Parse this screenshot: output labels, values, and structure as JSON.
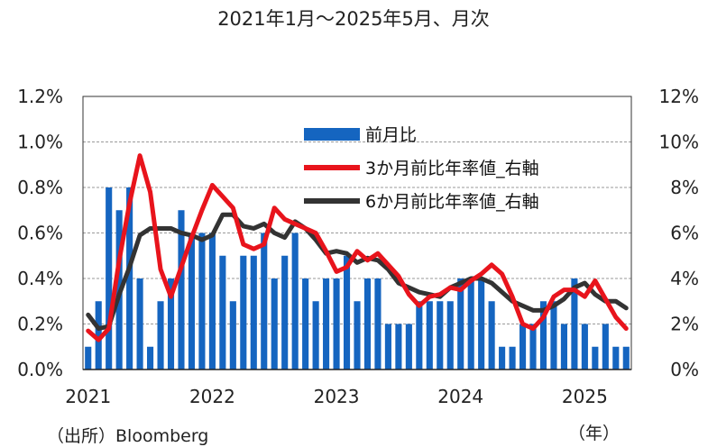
{
  "chart_data": {
    "type": "bar+line",
    "title": "2021年1月～2025年5月、月次",
    "source": "（出所）Bloomberg",
    "x_unit": "（年）",
    "x_tick_labels": [
      "2021",
      "2022",
      "2023",
      "2024",
      "2025"
    ],
    "y_left": {
      "ylim": [
        0,
        1.2
      ],
      "ticks": [
        0,
        0.2,
        0.4,
        0.6,
        0.8,
        1.0,
        1.2
      ],
      "tick_labels": [
        "0.0%",
        "0.2%",
        "0.4%",
        "0.6%",
        "0.8%",
        "1.0%",
        "1.2%"
      ]
    },
    "y_right": {
      "ylim": [
        0,
        12
      ],
      "ticks": [
        0,
        2,
        4,
        6,
        8,
        10,
        12
      ],
      "tick_labels": [
        "0%",
        "2%",
        "4%",
        "6%",
        "8%",
        "10%",
        "12%"
      ]
    },
    "grid": true,
    "legend_position": "top-center",
    "x": [
      "2021-01",
      "2021-02",
      "2021-03",
      "2021-04",
      "2021-05",
      "2021-06",
      "2021-07",
      "2021-08",
      "2021-09",
      "2021-10",
      "2021-11",
      "2021-12",
      "2022-01",
      "2022-02",
      "2022-03",
      "2022-04",
      "2022-05",
      "2022-06",
      "2022-07",
      "2022-08",
      "2022-09",
      "2022-10",
      "2022-11",
      "2022-12",
      "2023-01",
      "2023-02",
      "2023-03",
      "2023-04",
      "2023-05",
      "2023-06",
      "2023-07",
      "2023-08",
      "2023-09",
      "2023-10",
      "2023-11",
      "2023-12",
      "2024-01",
      "2024-02",
      "2024-03",
      "2024-04",
      "2024-05",
      "2024-06",
      "2024-07",
      "2024-08",
      "2024-09",
      "2024-10",
      "2024-11",
      "2024-12",
      "2025-01",
      "2025-02",
      "2025-03",
      "2025-04",
      "2025-05"
    ],
    "series": [
      {
        "name": "前月比",
        "type": "bar",
        "axis": "left",
        "color": "#1565c0",
        "values": [
          0.1,
          0.3,
          0.8,
          0.7,
          0.8,
          0.4,
          0.1,
          0.3,
          0.4,
          0.7,
          0.6,
          0.6,
          0.6,
          0.5,
          0.3,
          0.5,
          0.5,
          0.6,
          0.4,
          0.5,
          0.6,
          0.4,
          0.3,
          0.4,
          0.4,
          0.5,
          0.3,
          0.4,
          0.4,
          0.2,
          0.2,
          0.2,
          0.3,
          0.3,
          0.3,
          0.3,
          0.4,
          0.4,
          0.4,
          0.3,
          0.1,
          0.1,
          0.2,
          0.2,
          0.3,
          0.3,
          0.2,
          0.4,
          0.2,
          0.1,
          0.2,
          0.1,
          0.1
        ]
      },
      {
        "name": "3か月前比年率値_右軸",
        "type": "line",
        "axis": "right",
        "color": "#e8141c",
        "values": [
          1.7,
          1.3,
          1.8,
          4.8,
          7.3,
          9.4,
          7.8,
          4.4,
          3.2,
          4.5,
          5.8,
          7.0,
          8.1,
          7.6,
          7.1,
          5.5,
          5.3,
          5.5,
          7.1,
          6.6,
          6.4,
          6.2,
          6.0,
          5.2,
          4.3,
          4.5,
          5.2,
          4.8,
          5.1,
          4.6,
          4.1,
          3.3,
          2.8,
          3.2,
          3.3,
          3.6,
          3.5,
          3.9,
          4.2,
          4.6,
          4.2,
          3.2,
          2.0,
          1.8,
          2.3,
          3.2,
          3.5,
          3.5,
          3.2,
          3.9,
          3.1,
          2.3,
          1.8
        ]
      },
      {
        "name": "6か月前比年率値_右軸",
        "type": "line",
        "axis": "right",
        "color": "#333333",
        "values": [
          2.4,
          1.8,
          1.9,
          3.3,
          4.5,
          5.9,
          6.2,
          6.2,
          6.2,
          6.0,
          5.9,
          5.7,
          5.9,
          6.8,
          6.8,
          6.3,
          6.2,
          6.4,
          6.0,
          5.8,
          6.5,
          6.2,
          5.7,
          5.1,
          5.2,
          5.1,
          4.7,
          4.9,
          4.8,
          4.4,
          3.8,
          3.6,
          3.4,
          3.3,
          3.2,
          3.6,
          3.8,
          4.0,
          4.0,
          3.8,
          3.4,
          3.0,
          2.8,
          2.6,
          2.6,
          2.8,
          3.1,
          3.6,
          3.8,
          3.3,
          3.0,
          3.0,
          2.7
        ]
      }
    ]
  }
}
